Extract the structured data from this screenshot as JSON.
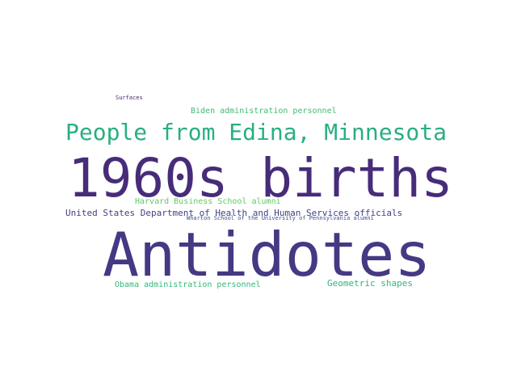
{
  "word_cloud": {
    "words": [
      {
        "text": "Surfaces",
        "color": "#482475"
      },
      {
        "text": "Biden administration personnel",
        "color": "#3fbc73"
      },
      {
        "text": "People from Edina, Minnesota",
        "color": "#29af7f"
      },
      {
        "text": "1960s births",
        "color": "#472c7a"
      },
      {
        "text": "Harvard Business School alumni",
        "color": "#5ec962"
      },
      {
        "text": "United States Department of Health and Human Services officials",
        "color": "#433e85"
      },
      {
        "text": "Wharton School of the University of Pennsylvania alumni",
        "color": "#3b528b"
      },
      {
        "text": "Antidotes",
        "color": "#443983"
      },
      {
        "text": "Obama administration personnel",
        "color": "#35b779"
      },
      {
        "text": "Geometric shapes",
        "color": "#2fb47c"
      }
    ]
  }
}
